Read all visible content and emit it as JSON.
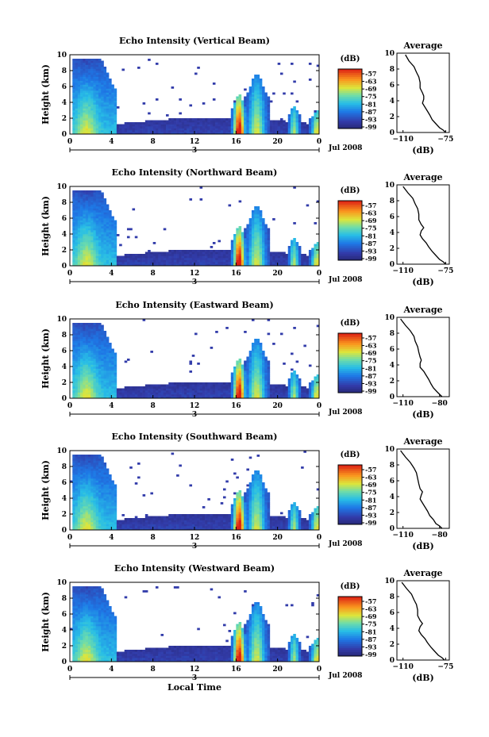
{
  "chart_data": [
    {
      "type": "heatmap",
      "title": "Echo Intensity (Vertical Beam)",
      "ylabel": "Height (km)",
      "yticks": [
        "0",
        "2",
        "4",
        "6",
        "8",
        "10"
      ],
      "xticks": [
        "0",
        "4",
        "8",
        "12",
        "16",
        "20",
        "0"
      ],
      "day_marker": "3",
      "date_label": "Jul 2008",
      "colorbar": {
        "title": "(dB)",
        "ticks": [
          "-57",
          "-63",
          "-69",
          "-75",
          "-81",
          "-87",
          "-93",
          "-99"
        ]
      },
      "average_profile": {
        "title": "Average",
        "xlabel": "(dB)",
        "xticks": [
          "-110",
          "-75"
        ],
        "xlim": [
          -115,
          -72
        ],
        "ylim": [
          0,
          10
        ],
        "x": [
          -108,
          -105,
          -101,
          -99,
          -97,
          -96,
          -96,
          -94,
          -93,
          -93,
          -94,
          -92,
          -90,
          -88,
          -86,
          -83,
          -80,
          -77,
          -75
        ],
        "y": [
          9.8,
          9,
          8.3,
          7.6,
          7,
          6.3,
          5.6,
          5,
          4.6,
          4.2,
          3.7,
          3.2,
          2.7,
          2.2,
          1.6,
          1.1,
          0.6,
          0.3,
          0
        ]
      }
    },
    {
      "type": "heatmap",
      "title": "Echo Intensity (Northward Beam)",
      "ylabel": "Height (km)",
      "yticks": [
        "0",
        "2",
        "4",
        "6",
        "8",
        "10"
      ],
      "xticks": [
        "0",
        "4",
        "8",
        "12",
        "16",
        "20",
        "0"
      ],
      "day_marker": "3",
      "date_label": "Jul 2008",
      "colorbar": {
        "title": "(dB)",
        "ticks": [
          "-57",
          "-63",
          "-69",
          "-75",
          "-81",
          "-87",
          "-93",
          "-99"
        ]
      },
      "average_profile": {
        "title": "Average",
        "xlabel": "(dB)",
        "xticks": [
          "-110",
          "-75"
        ],
        "xlim": [
          -115,
          -72
        ],
        "ylim": [
          0,
          10
        ],
        "x": [
          -110,
          -106,
          -102,
          -100,
          -98,
          -97,
          -97,
          -95,
          -93,
          -95,
          -96,
          -94,
          -91,
          -89,
          -86,
          -83,
          -80,
          -77,
          -75
        ],
        "y": [
          9.8,
          9,
          8.3,
          7.6,
          7,
          6.3,
          5.6,
          5,
          4.6,
          4.2,
          3.7,
          3.2,
          2.7,
          2.2,
          1.6,
          1.1,
          0.6,
          0.3,
          0
        ]
      }
    },
    {
      "type": "heatmap",
      "title": "Echo Intensity (Eastward Beam)",
      "ylabel": "Height (km)",
      "yticks": [
        "0",
        "2",
        "4",
        "6",
        "8",
        "10"
      ],
      "xticks": [
        "0",
        "4",
        "8",
        "12",
        "16",
        "20",
        "0"
      ],
      "day_marker": "3",
      "date_label": "Jul 2008",
      "colorbar": {
        "title": "(dB)",
        "ticks": [
          "-57",
          "-63",
          "-69",
          "-75",
          "-81",
          "-87",
          "-93",
          "-99"
        ]
      },
      "average_profile": {
        "title": "Average",
        "xlabel": "(dB)",
        "xticks": [
          "-110",
          "-80"
        ],
        "xlim": [
          -115,
          -72
        ],
        "ylim": [
          0,
          10
        ],
        "x": [
          -112,
          -108,
          -104,
          -101,
          -100,
          -98,
          -97,
          -96,
          -95,
          -96,
          -96,
          -93,
          -91,
          -89,
          -87,
          -85,
          -82,
          -80,
          -78
        ],
        "y": [
          9.8,
          9,
          8.3,
          7.6,
          7,
          6.3,
          5.6,
          5,
          4.6,
          4.2,
          3.7,
          3.2,
          2.7,
          2.2,
          1.6,
          1.1,
          0.6,
          0.3,
          0
        ]
      }
    },
    {
      "type": "heatmap",
      "title": "Echo Intensity (Southward Beam)",
      "ylabel": "Height (km)",
      "yticks": [
        "0",
        "2",
        "4",
        "6",
        "8",
        "10"
      ],
      "xticks": [
        "0",
        "4",
        "8",
        "12",
        "16",
        "20",
        "0"
      ],
      "day_marker": "3",
      "date_label": "Jul 2008",
      "colorbar": {
        "title": "(dB)",
        "ticks": [
          "-57",
          "-63",
          "-69",
          "-75",
          "-81",
          "-87",
          "-93",
          "-99"
        ]
      },
      "average_profile": {
        "title": "Average",
        "xlabel": "(dB)",
        "xticks": [
          "-110",
          "-80"
        ],
        "xlim": [
          -115,
          -72
        ],
        "ylim": [
          0,
          10
        ],
        "x": [
          -112,
          -108,
          -104,
          -101,
          -99,
          -98,
          -97,
          -96,
          -94,
          -95,
          -96,
          -94,
          -92,
          -90,
          -88,
          -85,
          -83,
          -80,
          -78
        ],
        "y": [
          9.8,
          9,
          8.3,
          7.6,
          7,
          6.3,
          5.6,
          5,
          4.6,
          4.2,
          3.7,
          3.2,
          2.7,
          2.2,
          1.6,
          1.1,
          0.6,
          0.3,
          0
        ]
      }
    },
    {
      "type": "heatmap",
      "title": "Echo Intensity (Westward Beam)",
      "ylabel": "Height (km)",
      "yticks": [
        "0",
        "2",
        "4",
        "6",
        "8",
        "10"
      ],
      "xticks": [
        "0",
        "4",
        "8",
        "12",
        "16",
        "20",
        "0"
      ],
      "day_marker": "3",
      "date_label": "Jul 2008",
      "xlabel": "Local Time",
      "colorbar": {
        "title": "(dB)",
        "ticks": [
          "-57",
          "-63",
          "-69",
          "-75",
          "-81",
          "-87",
          "-93",
          "-99"
        ]
      },
      "average_profile": {
        "title": "Average",
        "xlabel": "(dB)",
        "xticks": [
          "-110",
          "-75"
        ],
        "xlim": [
          -115,
          -72
        ],
        "ylim": [
          0,
          10
        ],
        "x": [
          -111,
          -107,
          -103,
          -101,
          -99,
          -98,
          -98,
          -96,
          -94,
          -96,
          -97,
          -95,
          -92,
          -90,
          -87,
          -84,
          -81,
          -78,
          -76
        ],
        "y": [
          9.8,
          9,
          8.3,
          7.6,
          7,
          6.3,
          5.6,
          5,
          4.6,
          4.2,
          3.7,
          3.2,
          2.7,
          2.2,
          1.6,
          1.1,
          0.6,
          0.3,
          0
        ]
      }
    }
  ]
}
